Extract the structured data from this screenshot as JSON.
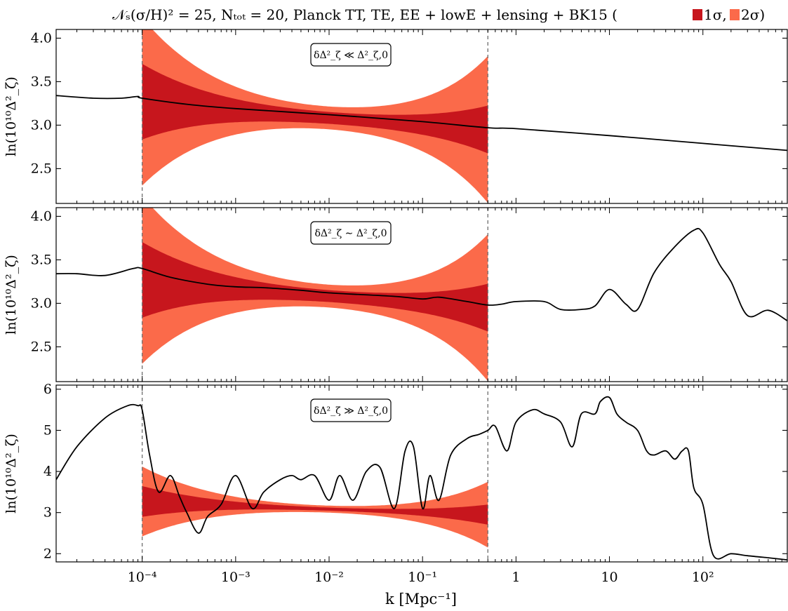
{
  "title": {
    "prefix": "𝒩ₛ(σ/H)² = 25,    Nₜₒₜ = 20,    Planck TT, TE, EE + lowE + lensing + BK15 (",
    "legend_1sigma": "1σ,",
    "legend_2sigma": "2σ)"
  },
  "colors": {
    "band_1sigma": "#c7161d",
    "band_2sigma": "#fb6a4a",
    "curve": "#000000",
    "vline": "#777777",
    "axis": "#000000"
  },
  "xlabel": "k [Mpc⁻¹]",
  "chart_data": [
    {
      "type": "line",
      "panel": "top",
      "annotation": "δΔ²_ζ ≪ Δ²_ζ,0",
      "ylabel": "ln(10¹⁰Δ²_ζ)",
      "xscale": "log",
      "xlim": [
        1.2e-05,
        800
      ],
      "ylim": [
        2.1,
        4.1
      ],
      "yticks": [
        2.5,
        3.0,
        3.5,
        4.0
      ],
      "ytick_labels": [
        "2.5",
        "3.0",
        "3.5",
        "4.0"
      ],
      "vlines": [
        0.0001,
        0.5
      ],
      "series": [
        {
          "x": [
            1.2e-05,
            3e-05,
            6e-05,
            9e-05,
            0.0001,
            0.0003,
            0.001,
            0.01,
            0.1,
            0.5,
            1,
            10,
            100,
            800
          ],
          "y": [
            3.34,
            3.31,
            3.31,
            3.33,
            3.31,
            3.24,
            3.19,
            3.12,
            3.04,
            2.97,
            2.96,
            2.88,
            2.79,
            2.71
          ]
        }
      ]
    },
    {
      "type": "line",
      "panel": "middle",
      "annotation": "δΔ²_ζ ∼ Δ²_ζ,0",
      "ylabel": "ln(10¹⁰Δ²_ζ)",
      "xscale": "log",
      "xlim": [
        1.2e-05,
        800
      ],
      "ylim": [
        2.1,
        4.1
      ],
      "yticks": [
        2.5,
        3.0,
        3.5,
        4.0
      ],
      "ytick_labels": [
        "2.5",
        "3.0",
        "3.5",
        "4.0"
      ],
      "vlines": [
        0.0001,
        0.5
      ],
      "series": [
        {
          "x": [
            1.2e-05,
            2e-05,
            4e-05,
            8e-05,
            0.0001,
            0.0002,
            0.0005,
            0.001,
            0.002,
            0.005,
            0.01,
            0.05,
            0.1,
            0.15,
            0.3,
            0.5,
            0.7,
            1,
            2,
            3,
            5,
            7,
            10,
            15,
            20,
            30,
            50,
            80,
            100,
            150,
            200,
            300,
            500,
            800
          ],
          "y": [
            3.34,
            3.34,
            3.32,
            3.4,
            3.4,
            3.3,
            3.22,
            3.19,
            3.18,
            3.15,
            3.12,
            3.08,
            3.05,
            3.07,
            3.02,
            2.98,
            2.99,
            3.02,
            3.02,
            2.93,
            2.93,
            2.97,
            3.16,
            2.99,
            2.93,
            3.35,
            3.65,
            3.84,
            3.81,
            3.45,
            3.25,
            2.86,
            2.92,
            2.8
          ]
        }
      ]
    },
    {
      "type": "line",
      "panel": "bottom",
      "annotation": "δΔ²_ζ ≫ Δ²_ζ,0",
      "ylabel": "ln(10¹⁰Δ²_ζ)",
      "xscale": "log",
      "xlim": [
        1.2e-05,
        800
      ],
      "ylim": [
        1.8,
        6.1
      ],
      "yticks": [
        2,
        3,
        4,
        5,
        6
      ],
      "ytick_labels": [
        "2",
        "3",
        "4",
        "5",
        "6"
      ],
      "xticks": [
        0.0001,
        0.001,
        0.01,
        0.1,
        1,
        10,
        100
      ],
      "xtick_labels": [
        "10⁻⁴",
        "10⁻³",
        "10⁻²",
        "10⁻¹",
        "1",
        "10",
        "10²"
      ],
      "vlines": [
        0.0001,
        0.5
      ],
      "series": [
        {
          "x": [
            1.2e-05,
            2e-05,
            4e-05,
            7e-05,
            9e-05,
            0.0001,
            0.00012,
            0.00015,
            0.0002,
            0.00025,
            0.0003,
            0.0004,
            0.0005,
            0.0007,
            0.001,
            0.0015,
            0.002,
            0.003,
            0.004,
            0.005,
            0.007,
            0.01,
            0.013,
            0.018,
            0.025,
            0.035,
            0.05,
            0.065,
            0.08,
            0.1,
            0.12,
            0.15,
            0.2,
            0.3,
            0.4,
            0.5,
            0.6,
            0.8,
            1,
            1.5,
            2,
            3,
            4,
            5,
            7,
            8,
            10,
            12,
            15,
            20,
            25,
            30,
            40,
            50,
            60,
            70,
            80,
            100,
            130,
            200,
            300,
            500,
            800
          ],
          "y": [
            3.8,
            4.6,
            5.3,
            5.6,
            5.6,
            5.5,
            4.4,
            3.5,
            3.9,
            3.4,
            3.0,
            2.5,
            2.9,
            3.2,
            3.9,
            3.1,
            3.5,
            3.8,
            3.9,
            3.8,
            3.9,
            3.3,
            3.9,
            3.3,
            4.0,
            4.1,
            3.1,
            4.5,
            4.6,
            3.1,
            3.9,
            3.3,
            4.4,
            4.8,
            4.9,
            5.0,
            5.1,
            4.5,
            5.2,
            5.5,
            5.4,
            5.2,
            4.6,
            5.4,
            5.4,
            5.7,
            5.8,
            5.4,
            5.2,
            5.0,
            4.5,
            4.4,
            4.5,
            4.3,
            4.5,
            4.5,
            3.6,
            3.2,
            1.95,
            2.0,
            1.95,
            1.9,
            1.85
          ]
        }
      ]
    }
  ]
}
